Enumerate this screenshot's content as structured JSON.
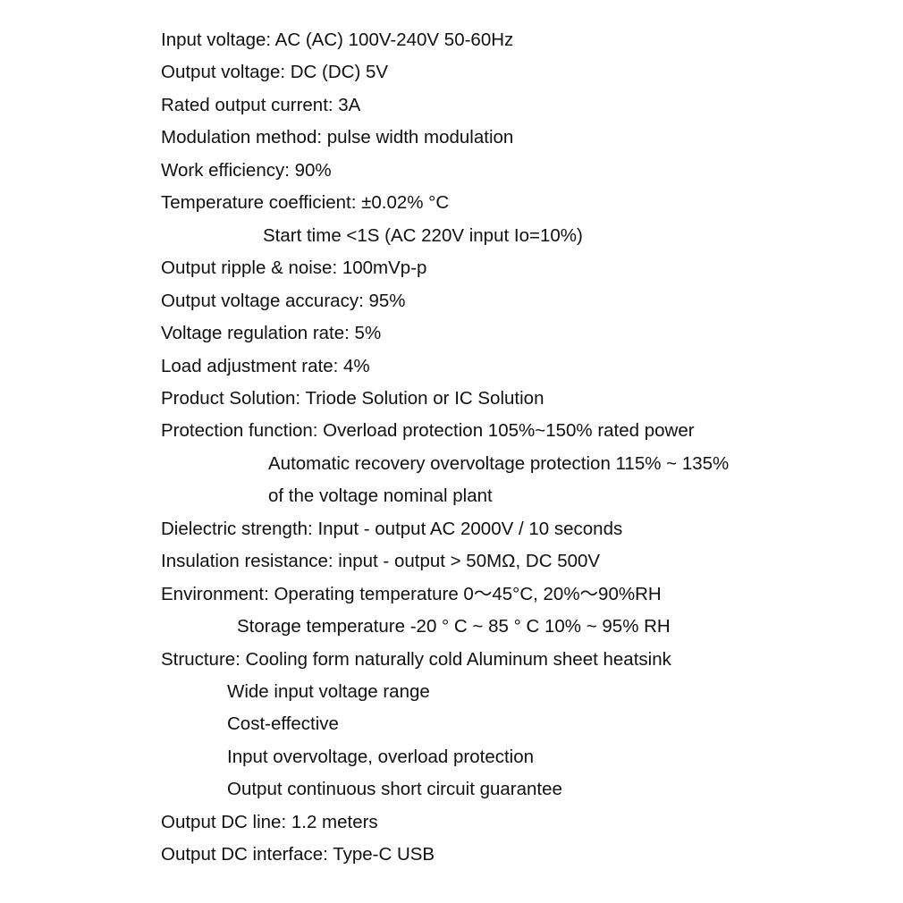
{
  "lines": [
    {
      "text": "Input voltage: AC (AC) 100V-240V 50-60Hz",
      "indent": 0
    },
    {
      "text": "Output voltage: DC (DC) 5V",
      "indent": 0
    },
    {
      "text": "Rated output current: 3A",
      "indent": 0
    },
    {
      "text": "Modulation method: pulse width modulation",
      "indent": 0
    },
    {
      "text": "Work efficiency: 90%",
      "indent": 0
    },
    {
      "text": "Temperature coefficient: ±0.02% °C",
      "indent": 0
    },
    {
      "text": "Start time <1S (AC 220V input Io=10%)",
      "indent": 1
    },
    {
      "text": "Output ripple & noise: 100mVp-p",
      "indent": 0
    },
    {
      "text": "Output voltage accuracy: 95%",
      "indent": 0
    },
    {
      "text": "Voltage regulation rate: 5%",
      "indent": 0
    },
    {
      "text": "Load adjustment rate: 4%",
      "indent": 0
    },
    {
      "text": "Product Solution: Triode Solution or IC Solution",
      "indent": 0
    },
    {
      "text": "Protection function: Overload protection 105%~150% rated power",
      "indent": 0
    },
    {
      "text": "Automatic recovery overvoltage protection 115% ~ 135%",
      "indent": 2
    },
    {
      "text": "of the voltage nominal plant",
      "indent": 2
    },
    {
      "text": "Dielectric strength: Input - output AC 2000V / 10 seconds",
      "indent": 0
    },
    {
      "text": "Insulation resistance: input - output > 50MΩ, DC 500V",
      "indent": 0
    },
    {
      "text": "Environment: Operating temperature 0～45°C, 20%～90%RH",
      "indent": 0
    },
    {
      "text": "Storage temperature -20 ° C ~ 85 ° C 10% ~ 95% RH",
      "indent": 3
    },
    {
      "text": "Structure: Cooling form naturally cold Aluminum sheet heatsink",
      "indent": 0
    },
    {
      "text": "Wide input voltage range",
      "indent": 4
    },
    {
      "text": "Cost-effective",
      "indent": 4
    },
    {
      "text": "Input overvoltage, overload protection",
      "indent": 4
    },
    {
      "text": "Output continuous short circuit guarantee",
      "indent": 4
    },
    {
      "text": "Output DC line: 1.2 meters",
      "indent": 0
    },
    {
      "text": "Output DC interface: Type-C USB",
      "indent": 0
    }
  ]
}
